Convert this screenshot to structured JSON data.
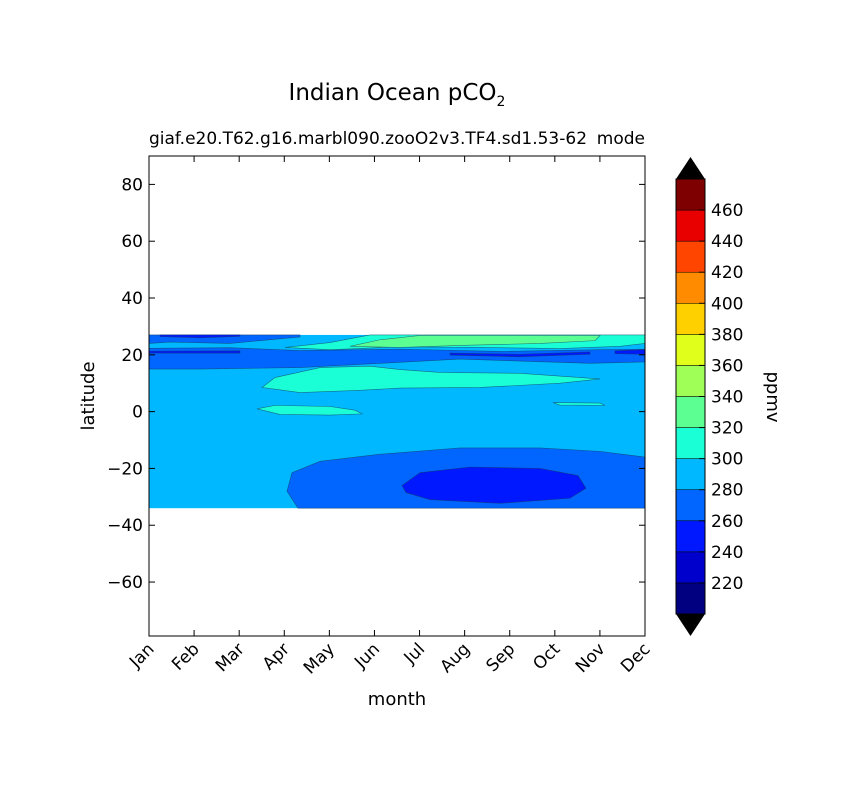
{
  "chart_data": {
    "type": "heatmap",
    "title": "Indian Ocean pCO",
    "title_subscript": "2",
    "subtitle_left": "giaf.e20.T62.g16.marbl090.zooO2v3.TF4.sd1.53-62",
    "subtitle_right": "mode",
    "xlabel": "month",
    "ylabel": "latitude",
    "x_categories": [
      "Jan",
      "Feb",
      "Mar",
      "Apr",
      "May",
      "Jun",
      "Jul",
      "Aug",
      "Sep",
      "Oct",
      "Nov",
      "Dec"
    ],
    "y_ticks": [
      80,
      60,
      40,
      20,
      0,
      -20,
      -40,
      -60
    ],
    "ylim": [
      -79,
      90
    ],
    "data_lat_range": [
      -34,
      27
    ],
    "grid": false,
    "colorbar": {
      "label": "ppmv",
      "position": "right",
      "extend": "both",
      "levels": [
        200,
        220,
        240,
        260,
        280,
        300,
        320,
        340,
        360,
        380,
        400,
        420,
        440,
        460,
        480
      ],
      "tick_labels": [
        "220",
        "240",
        "260",
        "280",
        "300",
        "320",
        "340",
        "360",
        "380",
        "400",
        "420",
        "440",
        "460"
      ],
      "colors": [
        "#000080",
        "#0000cd",
        "#0018ff",
        "#0066ff",
        "#00b8ff",
        "#1affd6",
        "#5cff92",
        "#9fff57",
        "#e0ff1a",
        "#ffd000",
        "#ff8c00",
        "#ff4500",
        "#e80000",
        "#7f0000"
      ],
      "under_color": "#000000",
      "over_color": "#000000"
    },
    "fields": {
      "background": 290,
      "regions": [
        {
          "kind": "band",
          "value": 270,
          "desc": "north band 14-22N"
        },
        {
          "kind": "band",
          "value": 250,
          "desc": "thin line near 20N"
        },
        {
          "kind": "patch",
          "value": 310,
          "desc": "Jun-Nov 21-27N"
        },
        {
          "kind": "patch",
          "value": 330,
          "desc": "Jul-Oct near 26N"
        },
        {
          "kind": "patch",
          "value": 310,
          "desc": "Apr-Nov 7-16N"
        },
        {
          "kind": "patch",
          "value": 310,
          "desc": "Apr-Jun near 0"
        },
        {
          "kind": "patch",
          "value": 310,
          "desc": "Oct-Nov near 3N"
        },
        {
          "kind": "patch",
          "value": 270,
          "desc": "southern band below -15"
        },
        {
          "kind": "patch",
          "value": 250,
          "desc": "Aug-Oct -20 to -32"
        },
        {
          "kind": "patch",
          "value": 250,
          "desc": "Jan near 26N"
        }
      ]
    }
  }
}
